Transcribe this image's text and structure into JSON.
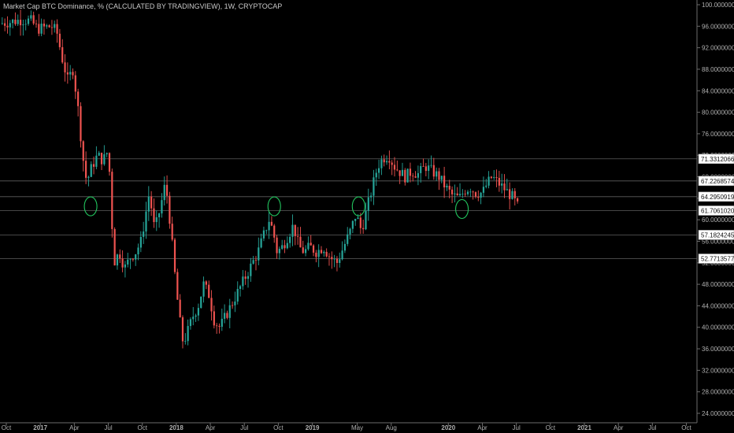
{
  "title": "Market Cap BTC Dominance, % (CALCULATED BY TRADINGVIEW), 1W, CRYPTOCAP",
  "chart_data": {
    "type": "candlestick",
    "y_ticks": [
      24,
      28,
      32,
      36,
      40,
      44,
      48,
      52,
      56,
      60,
      64,
      68,
      72,
      76,
      80,
      84,
      88,
      92,
      96,
      100
    ],
    "y_tick_labels": [
      "24.00000000",
      "28.00000000",
      "32.00000000",
      "36.00000000",
      "40.00000000",
      "44.00000000",
      "48.00000000",
      "52.00000000",
      "56.00000000",
      "60.00000000",
      "64.00000000",
      "68.00000000",
      "72.00000000",
      "76.00000000",
      "80.00000000",
      "84.00000000",
      "88.00000000",
      "92.00000000",
      "96.00000000",
      "100.00000000"
    ],
    "x_ticks": [
      {
        "label": "Oct",
        "t": 2016.75,
        "bold": false
      },
      {
        "label": "2017",
        "t": 2017.0,
        "bold": true
      },
      {
        "label": "Apr",
        "t": 2017.25,
        "bold": false
      },
      {
        "label": "Jul",
        "t": 2017.5,
        "bold": false
      },
      {
        "label": "Oct",
        "t": 2017.75,
        "bold": false
      },
      {
        "label": "2018",
        "t": 2018.0,
        "bold": true
      },
      {
        "label": "Apr",
        "t": 2018.25,
        "bold": false
      },
      {
        "label": "Jul",
        "t": 2018.5,
        "bold": false
      },
      {
        "label": "Oct",
        "t": 2018.75,
        "bold": false
      },
      {
        "label": "2019",
        "t": 2019.0,
        "bold": true
      },
      {
        "label": "May",
        "t": 2019.33,
        "bold": false
      },
      {
        "label": "Aug",
        "t": 2019.58,
        "bold": false
      },
      {
        "label": "2020",
        "t": 2020.0,
        "bold": true
      },
      {
        "label": "Apr",
        "t": 2020.25,
        "bold": false
      },
      {
        "label": "Jul",
        "t": 2020.5,
        "bold": false
      },
      {
        "label": "Oct",
        "t": 2020.75,
        "bold": false
      },
      {
        "label": "2021",
        "t": 2021.0,
        "bold": true
      },
      {
        "label": "Apr",
        "t": 2021.25,
        "bold": false
      },
      {
        "label": "Jul",
        "t": 2021.5,
        "bold": false
      },
      {
        "label": "Oct",
        "t": 2021.75,
        "bold": false
      }
    ],
    "horizontal_levels": [
      {
        "value": 71.33120662,
        "label": "71.33120662"
      },
      {
        "value": 67.22685741,
        "label": "67.22685741"
      },
      {
        "value": 64.29509197,
        "label": "64.29509197"
      },
      {
        "value": 61.70610208,
        "label": "61.70610208"
      },
      {
        "value": 57.18242459,
        "label": "57.18242459"
      },
      {
        "value": 52.77135775,
        "label": "52.77135775"
      }
    ],
    "marked_lows": [
      {
        "t": 2017.37,
        "value": 62.5
      },
      {
        "t": 2018.72,
        "value": 62.5
      },
      {
        "t": 2019.34,
        "value": 62.5
      },
      {
        "t": 2020.1,
        "value": 62
      }
    ],
    "price_path": [
      [
        2016.72,
        96.5
      ],
      [
        2016.8,
        96.8
      ],
      [
        2016.88,
        97.2
      ],
      [
        2016.95,
        97.0
      ],
      [
        2017.0,
        95.5
      ],
      [
        2017.06,
        95.8
      ],
      [
        2017.1,
        96.0
      ],
      [
        2017.14,
        95.0
      ],
      [
        2017.18,
        90.0
      ],
      [
        2017.22,
        86.0
      ],
      [
        2017.26,
        88.0
      ],
      [
        2017.3,
        80.0
      ],
      [
        2017.33,
        72.0
      ],
      [
        2017.36,
        67.0
      ],
      [
        2017.4,
        70.0
      ],
      [
        2017.44,
        72.0
      ],
      [
        2017.48,
        71.0
      ],
      [
        2017.52,
        73.0
      ],
      [
        2017.56,
        52.0
      ],
      [
        2017.6,
        54.0
      ],
      [
        2017.64,
        51.0
      ],
      [
        2017.68,
        53.0
      ],
      [
        2017.72,
        54.0
      ],
      [
        2017.76,
        56.0
      ],
      [
        2017.82,
        65.0
      ],
      [
        2017.86,
        58.0
      ],
      [
        2017.9,
        62.0
      ],
      [
        2017.94,
        67.0
      ],
      [
        2017.98,
        58.0
      ],
      [
        2018.0,
        52.0
      ],
      [
        2018.04,
        42.0
      ],
      [
        2018.07,
        37.0
      ],
      [
        2018.1,
        39.0
      ],
      [
        2018.14,
        42.0
      ],
      [
        2018.18,
        44.0
      ],
      [
        2018.22,
        48.0
      ],
      [
        2018.26,
        46.0
      ],
      [
        2018.3,
        41.0
      ],
      [
        2018.34,
        40.0
      ],
      [
        2018.38,
        42.0
      ],
      [
        2018.42,
        44.0
      ],
      [
        2018.46,
        46.0
      ],
      [
        2018.5,
        48.0
      ],
      [
        2018.54,
        50.0
      ],
      [
        2018.58,
        52.0
      ],
      [
        2018.62,
        54.0
      ],
      [
        2018.66,
        57.0
      ],
      [
        2018.7,
        60.0
      ],
      [
        2018.73,
        58.0
      ],
      [
        2018.76,
        54.0
      ],
      [
        2018.8,
        55.0
      ],
      [
        2018.84,
        57.0
      ],
      [
        2018.88,
        59.0
      ],
      [
        2018.92,
        55.0
      ],
      [
        2018.96,
        54.0
      ],
      [
        2019.0,
        55.0
      ],
      [
        2019.05,
        54.0
      ],
      [
        2019.1,
        55.0
      ],
      [
        2019.15,
        53.0
      ],
      [
        2019.2,
        52.0
      ],
      [
        2019.25,
        55.0
      ],
      [
        2019.3,
        58.0
      ],
      [
        2019.34,
        61.0
      ],
      [
        2019.38,
        58.0
      ],
      [
        2019.42,
        62.0
      ],
      [
        2019.46,
        66.0
      ],
      [
        2019.5,
        70.0
      ],
      [
        2019.54,
        71.5
      ],
      [
        2019.58,
        72.0
      ],
      [
        2019.62,
        70.0
      ],
      [
        2019.66,
        69.0
      ],
      [
        2019.7,
        68.0
      ],
      [
        2019.75,
        69.0
      ],
      [
        2019.8,
        68.5
      ],
      [
        2019.85,
        70.0
      ],
      [
        2019.9,
        69.0
      ],
      [
        2019.95,
        68.0
      ],
      [
        2020.0,
        66.0
      ],
      [
        2020.05,
        64.5
      ],
      [
        2020.1,
        64.0
      ],
      [
        2020.14,
        65.5
      ],
      [
        2020.18,
        66.0
      ],
      [
        2020.22,
        65.0
      ],
      [
        2020.27,
        65.0
      ],
      [
        2020.3,
        66.5
      ],
      [
        2020.34,
        68.0
      ],
      [
        2020.38,
        67.0
      ],
      [
        2020.42,
        66.0
      ],
      [
        2020.46,
        65.0
      ],
      [
        2020.5,
        64.0
      ],
      [
        2020.52,
        62.5
      ]
    ]
  }
}
